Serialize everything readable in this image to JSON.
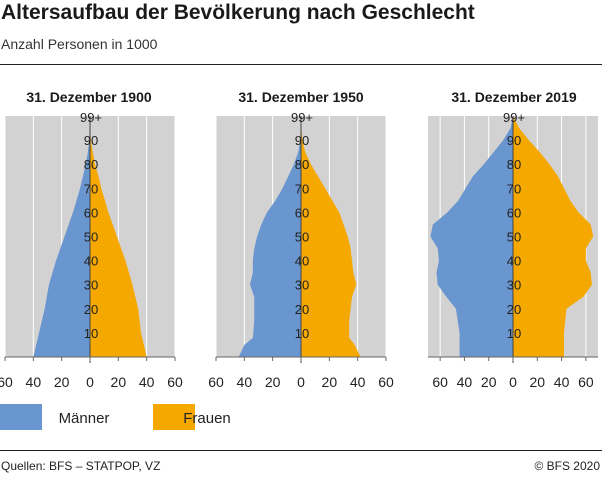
{
  "title": "Altersaufbau der Bevölkerung nach Geschlecht",
  "subtitle": "Anzahl Personen in 1000",
  "footer": {
    "source": "Quellen: BFS – STATPOP, VZ",
    "copyright": "© BFS 2020"
  },
  "colors": {
    "maenner": "#6a96cf",
    "frauen": "#f5a800",
    "panel_bg": "#d2d2d2",
    "grid": "#ffffff"
  },
  "legend": [
    {
      "name": "Männer",
      "color": "#6a96cf"
    },
    {
      "name": "Frauen",
      "color": "#f5a800"
    }
  ],
  "chart_data": [
    {
      "type": "bar",
      "orientation": "horizontal",
      "title": "31. Dezember 1900",
      "xlim": [
        -60,
        60
      ],
      "x_ticks": [
        -60,
        -40,
        -20,
        0,
        20,
        40,
        60
      ],
      "x_tick_labels": [
        "60",
        "40",
        "20",
        "0",
        "20",
        "40",
        "60"
      ],
      "y_tick_labels": [
        "10",
        "20",
        "30",
        "40",
        "50",
        "60",
        "70",
        "80",
        "90",
        "99+"
      ],
      "age_breakpoints": [
        0,
        10,
        20,
        30,
        40,
        50,
        60,
        70,
        75,
        80,
        85,
        90,
        95,
        99
      ],
      "series": [
        {
          "name": "Männer",
          "values": [
            40,
            36,
            32,
            29,
            24,
            18,
            12,
            7,
            5,
            3,
            1.5,
            0.5,
            0.2,
            0.1
          ]
        },
        {
          "name": "Frauen",
          "values": [
            40,
            36,
            34,
            30,
            25,
            19,
            13,
            8,
            6,
            3.5,
            2,
            0.6,
            0.2,
            0.1
          ]
        }
      ]
    },
    {
      "type": "bar",
      "orientation": "horizontal",
      "title": "31. Dezember 1950",
      "xlim": [
        -60,
        60
      ],
      "x_ticks": [
        -60,
        -40,
        -20,
        0,
        20,
        40,
        60
      ],
      "x_tick_labels": [
        "60",
        "40",
        "20",
        "0",
        "20",
        "40",
        "60"
      ],
      "y_tick_labels": [
        "10",
        "20",
        "30",
        "40",
        "50",
        "60",
        "70",
        "80",
        "90",
        "99+"
      ],
      "age_breakpoints": [
        0,
        5,
        8,
        15,
        25,
        30,
        35,
        40,
        45,
        50,
        55,
        60,
        65,
        70,
        75,
        80,
        85,
        90,
        95,
        99
      ],
      "series": [
        {
          "name": "Männer",
          "values": [
            44,
            40,
            34,
            33,
            33,
            36,
            34,
            34,
            33,
            31,
            28,
            24,
            18,
            13,
            9,
            5,
            2,
            0.5,
            0.1,
            0
          ]
        },
        {
          "name": "Frauen",
          "values": [
            42,
            38,
            34,
            34,
            36,
            39,
            37,
            36,
            35,
            33,
            30,
            27,
            22,
            17,
            12,
            7,
            3,
            1,
            0.2,
            0
          ]
        }
      ]
    },
    {
      "type": "bar",
      "orientation": "horizontal",
      "title": "31. Dezember 2019",
      "xlim": [
        -70,
        70
      ],
      "x_ticks": [
        -60,
        -40,
        -20,
        0,
        20,
        40,
        60
      ],
      "x_tick_labels": [
        "60",
        "40",
        "20",
        "0",
        "20",
        "40",
        "60"
      ],
      "y_tick_labels": [
        "10",
        "20",
        "30",
        "40",
        "50",
        "60",
        "70",
        "80",
        "90",
        "99+"
      ],
      "age_breakpoints": [
        0,
        10,
        20,
        25,
        30,
        35,
        40,
        45,
        50,
        55,
        60,
        65,
        70,
        75,
        80,
        85,
        90,
        95,
        99
      ],
      "series": [
        {
          "name": "Männer",
          "values": [
            44,
            44,
            47,
            55,
            62,
            63,
            61,
            62,
            68,
            66,
            54,
            45,
            39,
            33,
            24,
            16,
            8,
            2,
            0.5
          ]
        },
        {
          "name": "Frauen",
          "values": [
            42,
            42,
            44,
            58,
            65,
            64,
            60,
            60,
            66,
            64,
            54,
            47,
            42,
            37,
            30,
            22,
            13,
            5,
            1
          ]
        }
      ]
    }
  ]
}
